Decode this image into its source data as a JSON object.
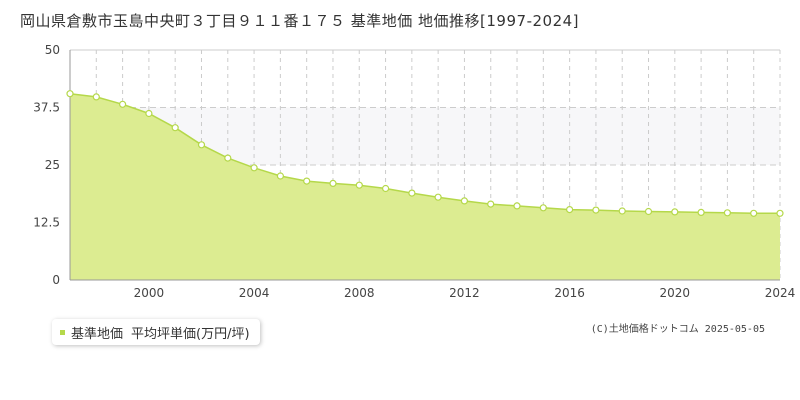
{
  "title": "岡山県倉敷市玉島中央町３丁目９１１番１７５ 基準地価 地価推移[1997-2024]",
  "legend": {
    "series_name": "基準地価",
    "unit_label": "平均坪単価(万円/坪)"
  },
  "copyright": "(C)土地価格ドットコム 2025-05-05",
  "colors": {
    "area_fill": "#dcec91",
    "line": "#b5d84a",
    "band": "#f7f7f9",
    "grid": "#cccccc",
    "marker_fill": "#ffffff"
  },
  "chart_data": {
    "type": "area",
    "title": "岡山県倉敷市玉島中央町３丁目９１１番１７５ 基準地価 地価推移[1997-2024]",
    "xlabel": "",
    "ylabel": "",
    "xlim": [
      1997,
      2024
    ],
    "ylim": [
      0,
      50
    ],
    "yticks": [
      0,
      12.5,
      25,
      37.5,
      50
    ],
    "yticklabels": [
      "0",
      "12.5",
      "25",
      "37.5",
      "50"
    ],
    "xticks": [
      2000,
      2004,
      2008,
      2012,
      2016,
      2020,
      2024
    ],
    "xticklabels": [
      "2000",
      "2004",
      "2008",
      "2012",
      "2016",
      "2020",
      "2024"
    ],
    "grid": true,
    "highlight_band": [
      25,
      37.5
    ],
    "legend_position": "bottom-left",
    "series": [
      {
        "name": "基準地価",
        "x": [
          1997,
          1998,
          1999,
          2000,
          2001,
          2002,
          2003,
          2004,
          2005,
          2006,
          2007,
          2008,
          2009,
          2010,
          2011,
          2012,
          2013,
          2014,
          2015,
          2016,
          2017,
          2018,
          2019,
          2020,
          2021,
          2022,
          2023,
          2024
        ],
        "values": [
          40.5,
          39.8,
          38.2,
          36.2,
          33.1,
          29.4,
          26.5,
          24.4,
          22.6,
          21.5,
          21.0,
          20.6,
          19.9,
          18.9,
          18.0,
          17.2,
          16.5,
          16.1,
          15.7,
          15.3,
          15.2,
          15.0,
          14.9,
          14.8,
          14.7,
          14.6,
          14.5,
          14.5
        ]
      }
    ]
  }
}
